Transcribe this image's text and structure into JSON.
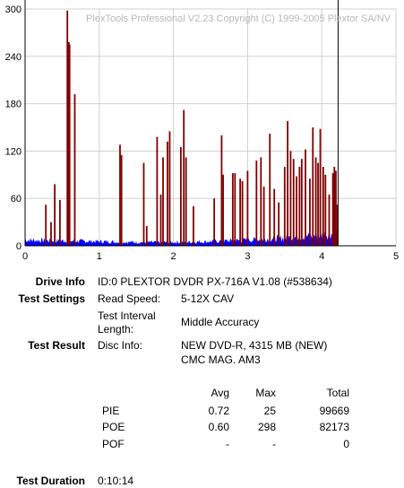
{
  "chart_data": {
    "type": "bar",
    "title": "PlexTools Professional V2.23 Copyright (C) 1999-2005 Plextor SA/NV",
    "xlabel": "",
    "ylabel": "",
    "xlim": [
      0,
      5
    ],
    "ylim": [
      0,
      300
    ],
    "x_ticks": [
      "0",
      "1",
      "2",
      "3",
      "4",
      "5"
    ],
    "y_ticks": [
      "0",
      "60",
      "120",
      "180",
      "240",
      "300"
    ],
    "grid": true,
    "end_marker_x": 4.22,
    "series": [
      {
        "color": "#800000",
        "points": [
          {
            "x": 0.28,
            "y": 52
          },
          {
            "x": 0.35,
            "y": 30
          },
          {
            "x": 0.4,
            "y": 78
          },
          {
            "x": 0.47,
            "y": 58
          },
          {
            "x": 0.57,
            "y": 298
          },
          {
            "x": 0.59,
            "y": 258
          },
          {
            "x": 0.6,
            "y": 255
          },
          {
            "x": 0.67,
            "y": 192
          },
          {
            "x": 1.28,
            "y": 128
          },
          {
            "x": 1.3,
            "y": 115
          },
          {
            "x": 1.6,
            "y": 105
          },
          {
            "x": 1.64,
            "y": 25
          },
          {
            "x": 1.78,
            "y": 138
          },
          {
            "x": 1.83,
            "y": 65
          },
          {
            "x": 1.86,
            "y": 112
          },
          {
            "x": 1.92,
            "y": 132
          },
          {
            "x": 1.95,
            "y": 145
          },
          {
            "x": 2.1,
            "y": 125
          },
          {
            "x": 2.14,
            "y": 172
          },
          {
            "x": 2.17,
            "y": 112
          },
          {
            "x": 2.27,
            "y": 50
          },
          {
            "x": 2.55,
            "y": 60
          },
          {
            "x": 2.65,
            "y": 140
          },
          {
            "x": 2.67,
            "y": 90
          },
          {
            "x": 2.8,
            "y": 92
          },
          {
            "x": 2.83,
            "y": 92
          },
          {
            "x": 2.9,
            "y": 85
          },
          {
            "x": 2.93,
            "y": 82
          },
          {
            "x": 3.0,
            "y": 95
          },
          {
            "x": 3.12,
            "y": 108
          },
          {
            "x": 3.18,
            "y": 112
          },
          {
            "x": 3.22,
            "y": 75
          },
          {
            "x": 3.3,
            "y": 142
          },
          {
            "x": 3.36,
            "y": 72
          },
          {
            "x": 3.42,
            "y": 55
          },
          {
            "x": 3.5,
            "y": 100
          },
          {
            "x": 3.54,
            "y": 158
          },
          {
            "x": 3.58,
            "y": 120
          },
          {
            "x": 3.62,
            "y": 110
          },
          {
            "x": 3.66,
            "y": 88
          },
          {
            "x": 3.7,
            "y": 100
          },
          {
            "x": 3.73,
            "y": 110
          },
          {
            "x": 3.78,
            "y": 122
          },
          {
            "x": 3.84,
            "y": 85
          },
          {
            "x": 3.88,
            "y": 150
          },
          {
            "x": 3.92,
            "y": 112
          },
          {
            "x": 3.95,
            "y": 105
          },
          {
            "x": 3.98,
            "y": 148
          },
          {
            "x": 4.02,
            "y": 100
          },
          {
            "x": 4.05,
            "y": 90
          },
          {
            "x": 4.1,
            "y": 65
          },
          {
            "x": 4.15,
            "y": 92
          },
          {
            "x": 4.17,
            "y": 100
          },
          {
            "x": 4.19,
            "y": 95
          },
          {
            "x": 4.21,
            "y": 52
          }
        ]
      },
      {
        "color": "#0000ff",
        "x_start": 0,
        "x_end": 4.22,
        "points": [
          {
            "x": 0.0,
            "y": 8
          },
          {
            "x": 0.5,
            "y": 7
          },
          {
            "x": 1.0,
            "y": 6
          },
          {
            "x": 1.5,
            "y": 5
          },
          {
            "x": 2.0,
            "y": 5
          },
          {
            "x": 2.5,
            "y": 6
          },
          {
            "x": 3.0,
            "y": 8
          },
          {
            "x": 3.5,
            "y": 11
          },
          {
            "x": 4.0,
            "y": 15
          },
          {
            "x": 4.22,
            "y": 18
          }
        ]
      }
    ]
  },
  "drive_info": {
    "label": "Drive Info",
    "value": "ID:0 PLEXTOR DVDR PX-716A V1.08 (#538634)"
  },
  "test_settings": {
    "label": "Test Settings",
    "read_speed_label": "Read Speed:",
    "read_speed_value": "5-12X CAV",
    "interval_label_line1": "Test Interval",
    "interval_label_line2": "Length:",
    "interval_value": "Middle Accuracy"
  },
  "test_result": {
    "label": "Test Result",
    "disc_info_label": "Disc Info:",
    "disc_info_line1": "NEW DVD-R, 4315 MB (NEW)",
    "disc_info_line2": "CMC MAG. AM3",
    "headers": [
      "Avg",
      "Max",
      "Total"
    ],
    "rows": [
      {
        "name": "PIE",
        "avg": "0.72",
        "max": "25",
        "total": "99669"
      },
      {
        "name": "POE",
        "avg": "0.60",
        "max": "298",
        "total": "82173"
      },
      {
        "name": "POF",
        "avg": "-",
        "max": "-",
        "total": "0"
      }
    ]
  },
  "test_duration": {
    "label": "Test Duration",
    "value": "0:10:14"
  }
}
